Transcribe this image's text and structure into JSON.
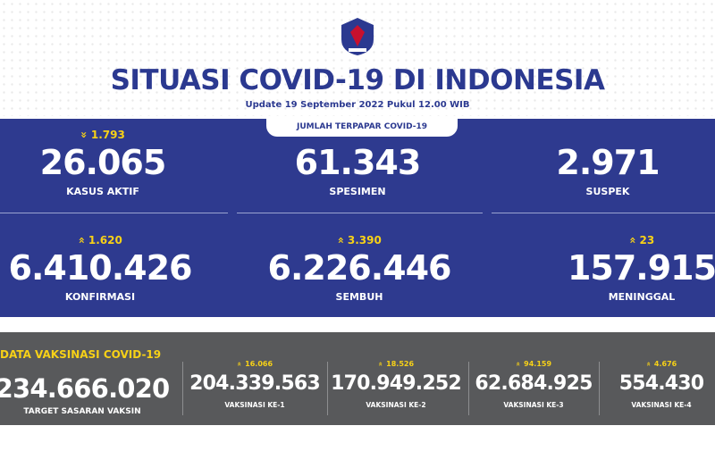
{
  "header": {
    "title": "SITUASI COVID-19 DI INDONESIA",
    "update": "Update 19 September 2022 Pukul 12.00 WIB"
  },
  "exposure": {
    "label": "JUMLAH TERPAPAR COVID-19",
    "items": [
      {
        "change": "1.793",
        "value": "26.065",
        "label": "KASUS AKTIF"
      },
      {
        "value": "61.343",
        "label": "SPESIMEN"
      },
      {
        "value": "2.971",
        "label": "SUSPEK"
      },
      {
        "change": "1.620",
        "value": "6.410.426",
        "label": "KONFIRMASI"
      },
      {
        "change": "3.390",
        "value": "6.226.446",
        "label": "SEMBUH"
      },
      {
        "change": "23",
        "value": "157.915",
        "label": "MENINGGAL"
      }
    ]
  },
  "vaccination": {
    "title": "DATA VAKSINASI COVID-19",
    "target": {
      "value": "234.666.020",
      "label": "TARGET SASARAN VAKSIN"
    },
    "doses": [
      {
        "change": "16.066",
        "value": "204.339.563",
        "label": "VAKSINASI KE-1"
      },
      {
        "change": "18.526",
        "value": "170.949.252",
        "label": "VAKSINASI KE-2"
      },
      {
        "change": "94.159",
        "value": "62.684.925",
        "label": "VAKSINASI KE-3"
      },
      {
        "change": "4.676",
        "value": "554.430",
        "label": "VAKSINASI KE-4"
      }
    ]
  }
}
